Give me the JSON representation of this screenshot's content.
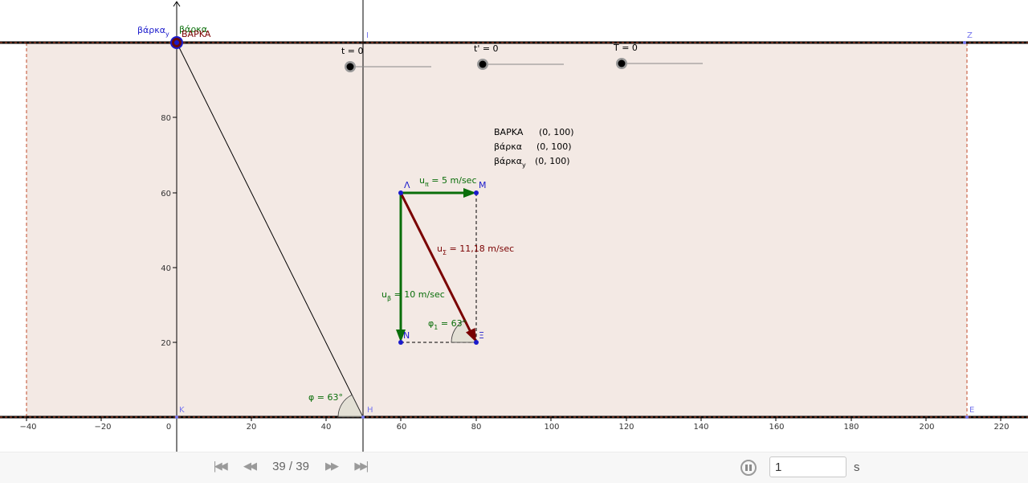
{
  "canvas": {
    "x_ticks": [
      "−40",
      "−20",
      "0",
      "20",
      "40",
      "60",
      "80",
      "100",
      "120",
      "140",
      "160",
      "180",
      "200",
      "220"
    ],
    "y_ticks": [
      "20",
      "40",
      "60",
      "80"
    ],
    "colors": {
      "river": "#f3e9e4",
      "river_edge": "#c04a2a",
      "green": "#0a6e0a",
      "darkred": "#7a0000",
      "point_blue": "#1a1acc",
      "label_blue": "#7777ee"
    }
  },
  "points": {
    "Z": "Z",
    "E": "E",
    "K": "K",
    "H": "H",
    "I": "I",
    "Lambda": "Λ",
    "M": "M",
    "N": "N",
    "Xi": "Ξ"
  },
  "sliders": {
    "t": "t = 0",
    "t_prime": "t' = 0",
    "T": "T = 0"
  },
  "boat_labels": {
    "varka_y": "βάρκα",
    "varka_y_sub": "y",
    "varka": "βάρκα",
    "VARKA": "ΒΑΡΚΑ"
  },
  "readout": {
    "rows": [
      {
        "name": "ΒΑΡΚΑ",
        "sub": "",
        "value": "(0, 100)"
      },
      {
        "name": "βάρκα",
        "sub": "",
        "value": "(0, 100)"
      },
      {
        "name": "βάρκα",
        "sub": "y",
        "value": "(0, 100)"
      }
    ]
  },
  "vectors": {
    "u_pi": {
      "main": "u",
      "sub": "π",
      "rest": " = 5 m/sec"
    },
    "u_beta": {
      "main": "u",
      "sub": "β",
      "rest": " = 10 m/sec"
    },
    "u_sigma": {
      "main": "u",
      "sub": "Σ",
      "rest": " = 11,18 m/sec"
    }
  },
  "angles": {
    "phi1": {
      "main": "φ",
      "sub": "1",
      "rest": " = 63°"
    },
    "phi": "φ = 63°"
  },
  "animation": {
    "frame": "39 / 39",
    "speed": "1",
    "unit": "s"
  }
}
